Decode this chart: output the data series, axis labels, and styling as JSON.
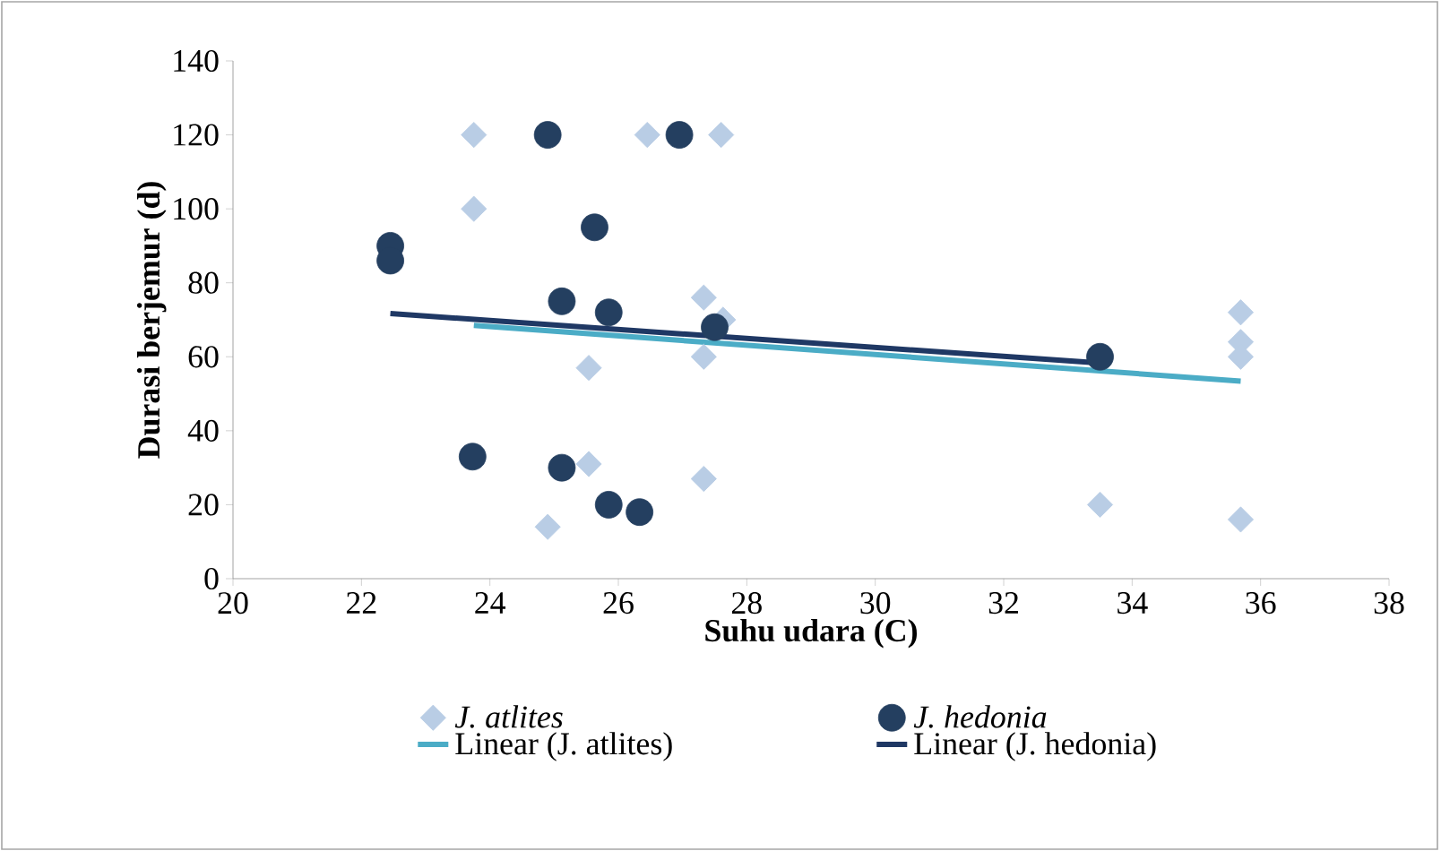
{
  "chart_data": {
    "type": "scatter",
    "xlabel": "Suhu udara (C)",
    "ylabel": "Durasi berjemur (d)",
    "xlim": [
      20,
      38
    ],
    "xticks": [
      20,
      22,
      24,
      26,
      28,
      30,
      32,
      34,
      36,
      38
    ],
    "ylim": [
      0,
      140
    ],
    "yticks": [
      0,
      20,
      40,
      60,
      80,
      100,
      120,
      140
    ],
    "legend": "bottom",
    "series": [
      {
        "name": "J. atlites",
        "marker": "diamond",
        "color": "#b9cde5",
        "x": [
          23.75,
          23.75,
          26.45,
          27.6,
          27.33,
          27.63,
          27.33,
          25.54,
          25.54,
          27.33,
          24.9,
          35.69,
          35.69,
          35.69,
          33.5,
          35.69
        ],
        "values": [
          120,
          100,
          120,
          120,
          76,
          70,
          60,
          57,
          31,
          27,
          14,
          72,
          64,
          60,
          20,
          16
        ]
      },
      {
        "name": "J. hedonia",
        "marker": "circle",
        "color": "#243f60",
        "x": [
          22.45,
          22.45,
          24.9,
          26.95,
          25.63,
          25.12,
          25.85,
          27.5,
          23.73,
          25.12,
          25.85,
          26.33,
          33.5
        ],
        "values": [
          90,
          86,
          120,
          120,
          95,
          75,
          72,
          68,
          33,
          30,
          20,
          18,
          60
        ]
      },
      {
        "name": "Linear (J. atlites)",
        "type": "line",
        "color": "#4bacc6",
        "x": [
          23.75,
          35.69
        ],
        "values": [
          68.5,
          53.4
        ]
      },
      {
        "name": "Linear (J. hedonia)",
        "type": "line",
        "color": "#1f3864",
        "x": [
          22.45,
          33.5
        ],
        "values": [
          71.7,
          58.3
        ]
      }
    ]
  }
}
